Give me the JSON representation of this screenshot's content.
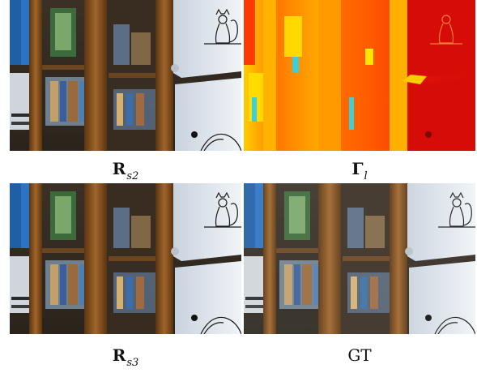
{
  "captions": {
    "top_left": {
      "symbol": "R",
      "subscript": "s2"
    },
    "top_right": {
      "symbol": "Γ",
      "subscript": "l"
    },
    "bottom_left": {
      "symbol": "R",
      "subscript": "s3"
    },
    "bottom_right": {
      "text": "GT"
    }
  },
  "colors": {
    "wood": "#7a4a1e",
    "wood_dark": "#4a2a10",
    "cabinet_white": "#dfe6ee",
    "heatmap_red": "#e0120a",
    "heatmap_orange": "#ff7a00",
    "heatmap_yellow": "#ffe600",
    "heatmap_cyan": "#39d0d8"
  }
}
